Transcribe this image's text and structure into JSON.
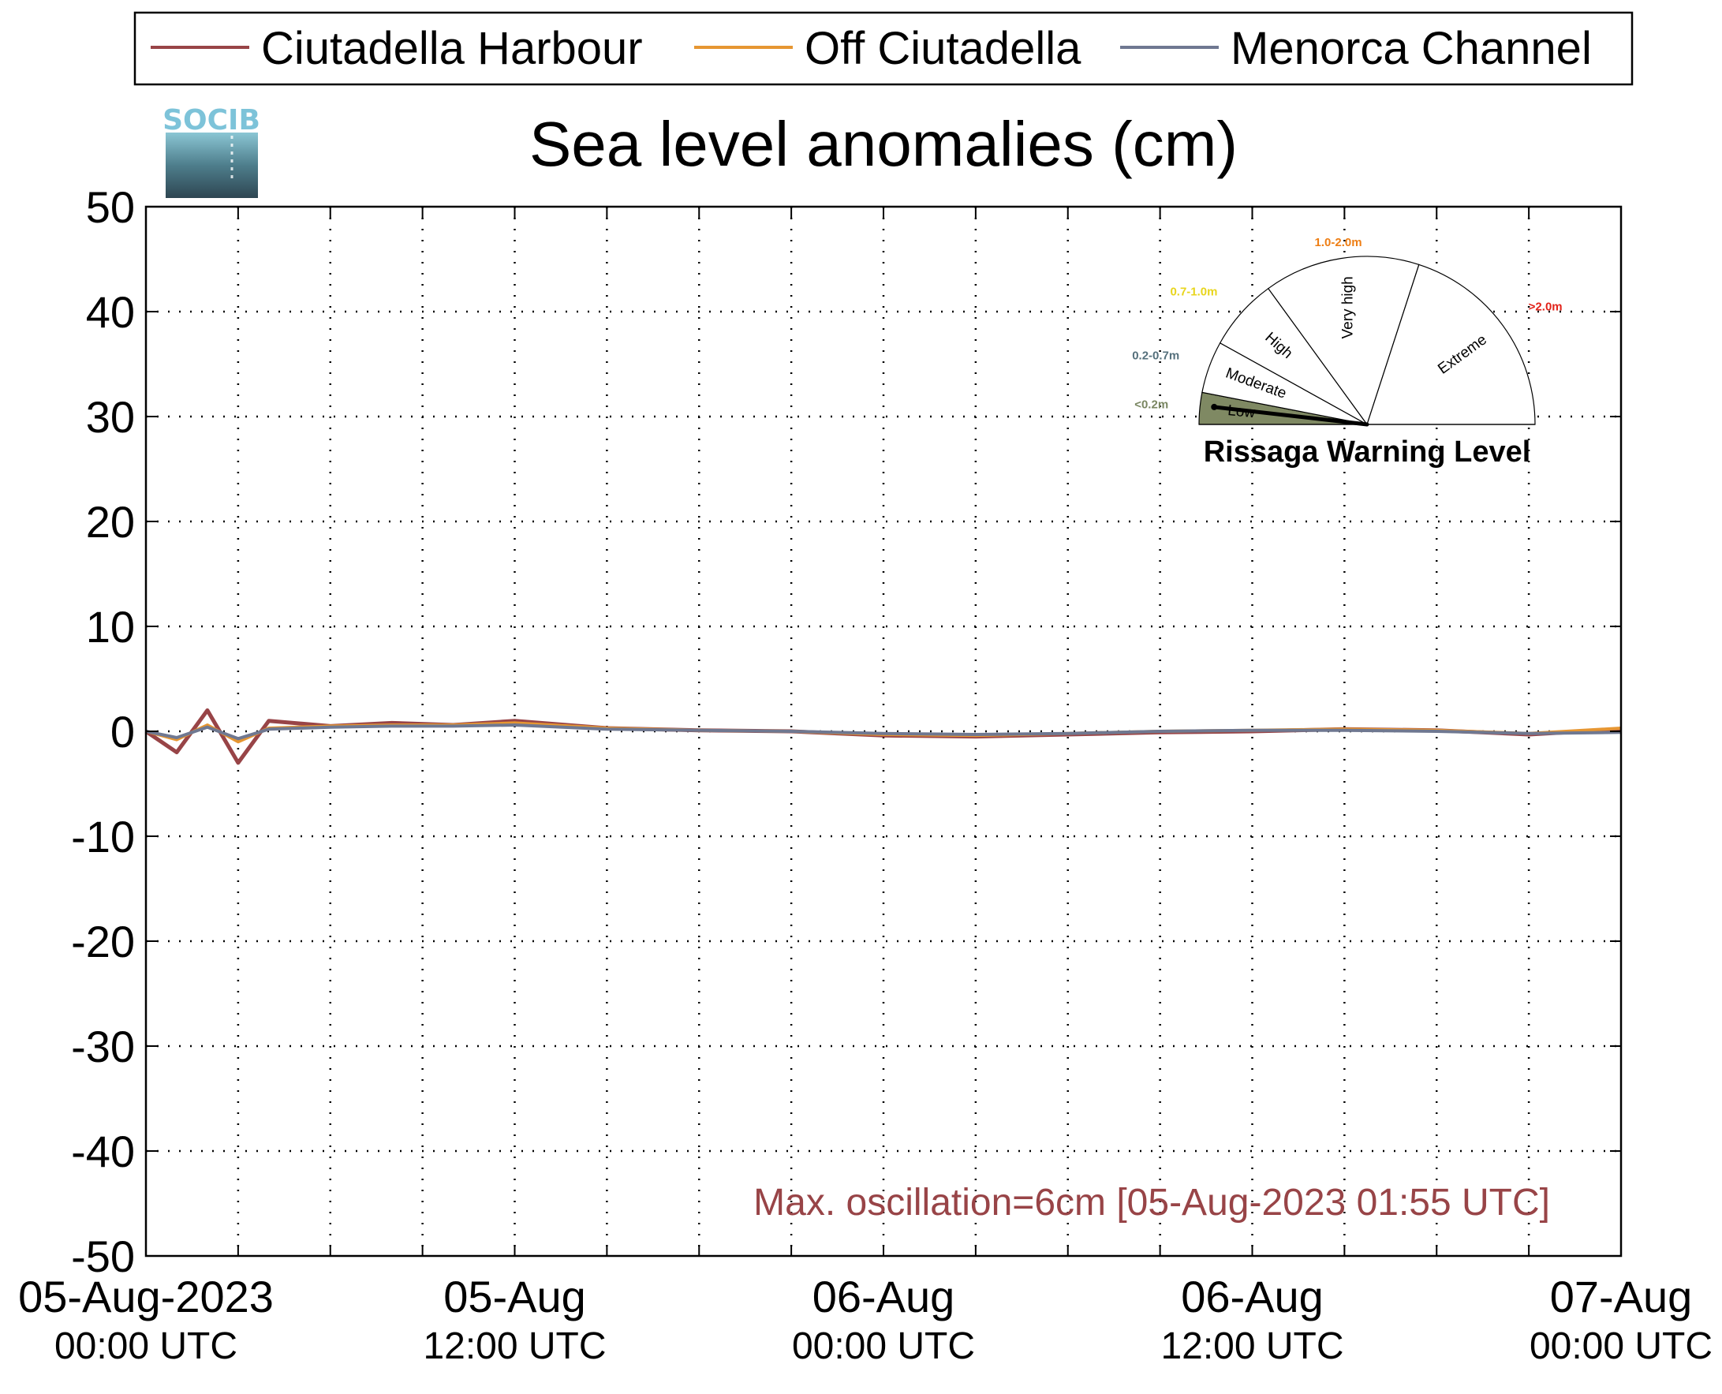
{
  "chart_data": {
    "type": "line",
    "title": "Sea level anomalies (cm)",
    "xlabel": "",
    "ylabel": "",
    "ylim": [
      -50,
      50
    ],
    "yticks": [
      50,
      40,
      30,
      20,
      10,
      0,
      -10,
      -20,
      -30,
      -40,
      -50
    ],
    "xlim": [
      "2023-08-05T00:00Z",
      "2023-08-07T00:00Z"
    ],
    "xticks": [
      {
        "date": "05-Aug-2023",
        "time": "00:00 UTC",
        "at": "2023-08-05T00:00Z"
      },
      {
        "date": "05-Aug",
        "time": "12:00 UTC",
        "at": "2023-08-05T12:00Z"
      },
      {
        "date": "06-Aug",
        "time": "00:00 UTC",
        "at": "2023-08-06T00:00Z"
      },
      {
        "date": "06-Aug",
        "time": "12:00 UTC",
        "at": "2023-08-06T12:00Z"
      },
      {
        "date": "07-Aug",
        "time": "00:00 UTC",
        "at": "2023-08-07T00:00Z"
      }
    ],
    "grid": true,
    "legend_position": "top",
    "series": [
      {
        "name": "Ciutadella Harbour",
        "color": "#984447",
        "x": [
          "2023-08-05T00:00Z",
          "2023-08-05T01:00Z",
          "2023-08-05T02:00Z",
          "2023-08-05T03:00Z",
          "2023-08-05T04:00Z",
          "2023-08-05T06:00Z",
          "2023-08-05T08:00Z",
          "2023-08-05T10:00Z",
          "2023-08-05T12:00Z",
          "2023-08-05T15:00Z",
          "2023-08-05T18:00Z",
          "2023-08-05T21:00Z",
          "2023-08-06T00:00Z",
          "2023-08-06T03:00Z",
          "2023-08-06T06:00Z",
          "2023-08-06T09:00Z",
          "2023-08-06T12:00Z",
          "2023-08-06T15:00Z",
          "2023-08-06T18:00Z",
          "2023-08-06T21:00Z",
          "2023-08-07T00:00Z"
        ],
        "values": [
          0,
          -2,
          2,
          -3,
          1,
          0.5,
          0.8,
          0.6,
          1.0,
          0.3,
          0.1,
          0,
          -0.4,
          -0.5,
          -0.3,
          -0.1,
          0,
          0.2,
          0.1,
          -0.3,
          0.2
        ]
      },
      {
        "name": "Off Ciutadella",
        "color": "#E69632",
        "x": [
          "2023-08-05T00:00Z",
          "2023-08-05T01:00Z",
          "2023-08-05T02:00Z",
          "2023-08-05T03:00Z",
          "2023-08-05T04:00Z",
          "2023-08-05T06:00Z",
          "2023-08-05T08:00Z",
          "2023-08-05T10:00Z",
          "2023-08-05T12:00Z",
          "2023-08-05T15:00Z",
          "2023-08-05T18:00Z",
          "2023-08-05T21:00Z",
          "2023-08-06T00:00Z",
          "2023-08-06T03:00Z",
          "2023-08-06T06:00Z",
          "2023-08-06T09:00Z",
          "2023-08-06T12:00Z",
          "2023-08-06T15:00Z",
          "2023-08-06T18:00Z",
          "2023-08-06T21:00Z",
          "2023-08-07T00:00Z"
        ],
        "values": [
          0,
          -0.8,
          0.6,
          -1.0,
          0.3,
          0.5,
          0.6,
          0.6,
          0.8,
          0.3,
          0.1,
          0,
          -0.3,
          -0.4,
          -0.2,
          0,
          0.1,
          0.2,
          0.1,
          -0.2,
          0.3
        ]
      },
      {
        "name": "Menorca Channel",
        "color": "#6F7891",
        "x": [
          "2023-08-05T00:00Z",
          "2023-08-05T01:00Z",
          "2023-08-05T02:00Z",
          "2023-08-05T03:00Z",
          "2023-08-05T04:00Z",
          "2023-08-05T06:00Z",
          "2023-08-05T08:00Z",
          "2023-08-05T10:00Z",
          "2023-08-05T12:00Z",
          "2023-08-05T15:00Z",
          "2023-08-05T18:00Z",
          "2023-08-05T21:00Z",
          "2023-08-06T00:00Z",
          "2023-08-06T03:00Z",
          "2023-08-06T06:00Z",
          "2023-08-06T09:00Z",
          "2023-08-06T12:00Z",
          "2023-08-06T15:00Z",
          "2023-08-06T18:00Z",
          "2023-08-06T21:00Z",
          "2023-08-07T00:00Z"
        ],
        "values": [
          0,
          -0.6,
          0.4,
          -0.7,
          0.2,
          0.4,
          0.5,
          0.5,
          0.6,
          0.2,
          0.1,
          0,
          -0.2,
          -0.3,
          -0.2,
          0,
          0.1,
          0.1,
          0,
          -0.2,
          -0.1
        ]
      }
    ],
    "annotation": "Max. oscillation=6cm [05-Aug-2023 01:55 UTC]",
    "annotation_color": "#984447"
  },
  "logo": {
    "text": "SOCIB"
  },
  "gauge": {
    "title": "Rissaga Warning Level",
    "current_level": "Low",
    "levels": [
      {
        "label": "Low",
        "range": "<0.2m",
        "range_color": "#7A8762",
        "fill": "#7F8963"
      },
      {
        "label": "Moderate",
        "range": "0.2-0.7m",
        "range_color": "#55707C",
        "fill": "#ffffff"
      },
      {
        "label": "High",
        "range": "0.7-1.0m",
        "range_color": "#E8D51C",
        "fill": "#ffffff"
      },
      {
        "label": "Very high",
        "range": "1.0-2.0m",
        "range_color": "#EE7E14",
        "fill": "#ffffff"
      },
      {
        "label": "Extreme",
        "range": ">2.0m",
        "range_color": "#E2231A",
        "fill": "#ffffff"
      }
    ]
  }
}
